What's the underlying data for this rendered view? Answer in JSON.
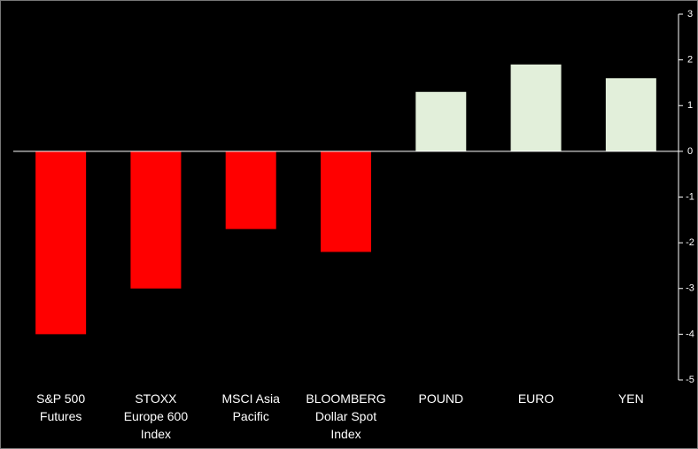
{
  "chart_data": {
    "type": "bar",
    "categories": [
      "S&P 500\nFutures",
      "STOXX\nEurope 600\nIndex",
      "MSCI Asia\nPacific",
      "BLOOMBERG\nDollar Spot\nIndex",
      "POUND",
      "EURO",
      "YEN"
    ],
    "values": [
      -4.0,
      -3.0,
      -1.7,
      -2.2,
      1.3,
      1.9,
      1.6
    ],
    "colors": [
      "#ff0000",
      "#ff0000",
      "#ff0000",
      "#ff0000",
      "#e2efda",
      "#e2efda",
      "#e2efda"
    ],
    "ylim": [
      -5,
      3
    ],
    "yticks": [
      -5,
      -4,
      -3,
      -2,
      -1,
      0,
      1,
      2,
      3
    ],
    "grid": false
  }
}
